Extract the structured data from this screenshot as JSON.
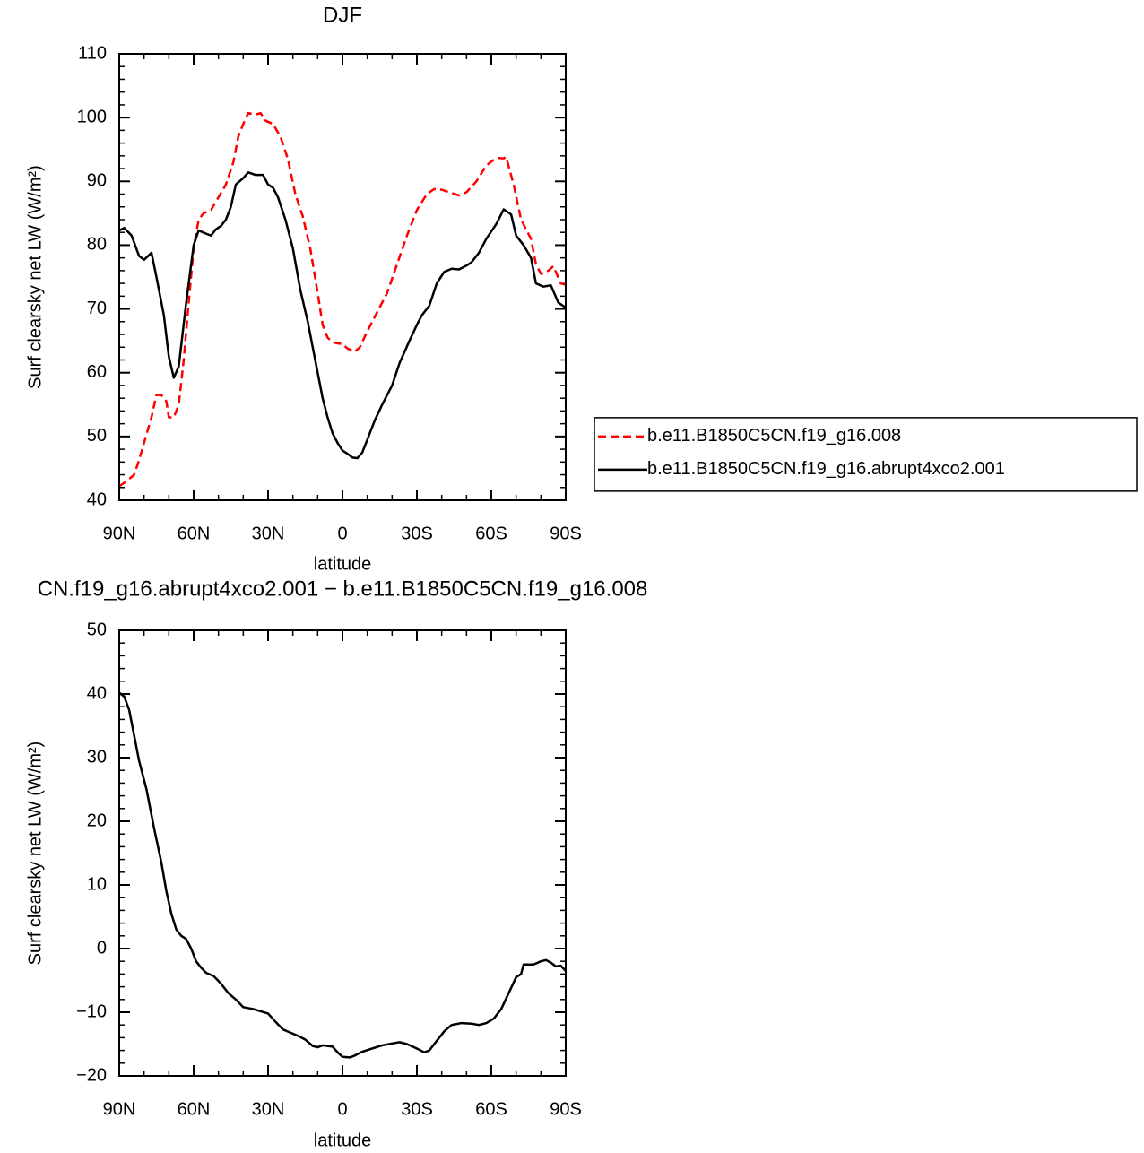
{
  "chart_data": [
    {
      "type": "line",
      "title": "DJF",
      "x_label": "latitude",
      "y_label": "Surf clearsky net LW (W/m²)",
      "xlim": [
        90,
        -90
      ],
      "xticks": [
        {
          "value": 90,
          "label": "90N"
        },
        {
          "value": 60,
          "label": "60N"
        },
        {
          "value": 30,
          "label": "30N"
        },
        0,
        {
          "value": -30,
          "label": "30S"
        },
        {
          "value": -60,
          "label": "60S"
        },
        {
          "value": -90,
          "label": "90S"
        }
      ],
      "ylim": [
        40,
        110
      ],
      "yticks": [
        40,
        50,
        60,
        70,
        80,
        90,
        100,
        110
      ],
      "legend": "outside-right",
      "series": [
        {
          "name": "b.e11.B1850C5CN.f19_g16.008",
          "color": "#ff0000",
          "line_style": "dashed",
          "x": [
            90,
            87,
            84,
            82,
            80,
            77,
            75,
            73,
            71,
            70,
            68,
            66,
            64,
            62,
            60,
            58,
            56,
            53,
            50,
            47,
            44,
            42,
            40,
            38,
            35,
            33,
            31,
            28,
            25,
            22,
            19,
            16,
            13,
            10,
            8,
            6,
            4,
            2,
            0,
            -2,
            -5,
            -7,
            -10,
            -14,
            -18,
            -22,
            -26,
            -30,
            -34,
            -37,
            -40,
            -43,
            -47,
            -50,
            -54,
            -58,
            -62,
            -65,
            -66,
            -69,
            -72,
            -76,
            -78,
            -80,
            -83,
            -85,
            -88,
            -90
          ],
          "values": [
            42.2,
            43,
            44,
            46.3,
            49,
            53,
            56.5,
            56.5,
            55.5,
            53,
            53,
            55,
            62,
            71,
            79.5,
            84,
            85,
            85.5,
            87.5,
            89.5,
            93,
            97,
            99,
            100.7,
            100.5,
            100.7,
            99.5,
            99,
            97,
            93.5,
            88,
            84.5,
            79.5,
            72.5,
            67.5,
            65.5,
            64.8,
            64.6,
            64.5,
            63.8,
            63.3,
            64,
            66.5,
            69.5,
            72.5,
            77,
            81.5,
            85.5,
            88,
            88.8,
            88.7,
            88.3,
            87.8,
            88.3,
            90,
            92.5,
            93.7,
            93.6,
            93.8,
            89.5,
            84,
            81,
            77,
            75.5,
            76,
            76.7,
            74,
            73.8
          ]
        },
        {
          "name": "b.e11.B1850C5CN.f19_g16.abrupt4xco2.001",
          "color": "#000000",
          "line_style": "solid",
          "x": [
            90,
            88,
            85,
            82,
            80,
            77,
            75,
            72,
            70,
            68,
            66,
            63,
            60,
            58,
            55,
            53,
            51,
            49,
            47,
            45,
            43,
            40,
            38,
            35,
            32,
            30,
            28,
            26,
            23,
            20,
            17,
            14,
            11,
            8,
            6,
            4,
            2,
            0,
            -2,
            -4,
            -6,
            -8,
            -10,
            -13,
            -16,
            -20,
            -23,
            -27,
            -30,
            -32,
            -35,
            -38,
            -41,
            -44,
            -47,
            -50,
            -52,
            -55,
            -58,
            -62,
            -65,
            -68,
            -70,
            -73,
            -76,
            -78,
            -81,
            -84,
            -87,
            -90
          ],
          "values": [
            82.3,
            82.7,
            81.5,
            78.3,
            77.7,
            78.8,
            75,
            69,
            62.5,
            59.2,
            61,
            71,
            80,
            82.3,
            81.8,
            81.5,
            82.5,
            83,
            84,
            86,
            89.5,
            90.5,
            91.4,
            91,
            91,
            89.5,
            89,
            87.5,
            84,
            79.5,
            73,
            68,
            62,
            56,
            53,
            50.5,
            49,
            47.8,
            47.3,
            46.7,
            46.6,
            47.5,
            49.5,
            52.5,
            55,
            58,
            61.5,
            65,
            67.5,
            69,
            70.5,
            74,
            75.8,
            76.3,
            76.2,
            76.8,
            77.3,
            78.8,
            81,
            83.3,
            85.6,
            84.8,
            81.5,
            80,
            78,
            74,
            73.5,
            73.7,
            71,
            70.2
          ]
        }
      ]
    },
    {
      "type": "line",
      "title": "CN.f19_g16.abrupt4xco2.001 − b.e11.B1850C5CN.f19_g16.008",
      "x_label": "latitude",
      "y_label": "Surf clearsky net LW (W/m²)",
      "xlim": [
        90,
        -90
      ],
      "xticks": [
        {
          "value": 90,
          "label": "90N"
        },
        {
          "value": 60,
          "label": "60N"
        },
        {
          "value": 30,
          "label": "30N"
        },
        0,
        {
          "value": -30,
          "label": "30S"
        },
        {
          "value": -60,
          "label": "60S"
        },
        {
          "value": -90,
          "label": "90S"
        }
      ],
      "ylim": [
        -20,
        50
      ],
      "yticks": [
        {
          "value": -20,
          "label": "−20"
        },
        {
          "value": -10,
          "label": "−10"
        },
        0,
        10,
        20,
        30,
        40,
        50
      ],
      "series": [
        {
          "color": "#000000",
          "line_style": "solid",
          "x": [
            90,
            88,
            86,
            84,
            82,
            79,
            76,
            73,
            71,
            69,
            67,
            65,
            63,
            61,
            59,
            57,
            55,
            52,
            49,
            46,
            43,
            40,
            36,
            30,
            27,
            24,
            21,
            18,
            15,
            12,
            10,
            8,
            4,
            2,
            0,
            -3,
            -5,
            -8,
            -12,
            -16,
            -20,
            -23,
            -26,
            -30,
            -33,
            -35,
            -38,
            -41,
            -44,
            -48,
            -52,
            -55,
            -58,
            -61,
            -64,
            -67,
            -70,
            -72,
            -73,
            -77,
            -80,
            -82,
            -84,
            -86,
            -88,
            -90
          ],
          "values": [
            40.2,
            39.6,
            37.5,
            33.5,
            29.5,
            25,
            19,
            13.5,
            9,
            5.5,
            3,
            2,
            1.5,
            0,
            -2,
            -3,
            -3.8,
            -4.3,
            -5.5,
            -7,
            -8,
            -9.2,
            -9.5,
            -10.2,
            -11.5,
            -12.7,
            -13.2,
            -13.7,
            -14.3,
            -15.3,
            -15.5,
            -15.2,
            -15.4,
            -16.3,
            -17,
            -17.1,
            -16.8,
            -16.2,
            -15.7,
            -15.2,
            -14.9,
            -14.7,
            -15,
            -15.7,
            -16.3,
            -16,
            -14.5,
            -13,
            -12,
            -11.7,
            -11.8,
            -12,
            -11.7,
            -11,
            -9.5,
            -7,
            -4.5,
            -4,
            -2.5,
            -2.5,
            -2,
            -1.8,
            -2.2,
            -2.8,
            -2.7,
            -3.5
          ]
        }
      ]
    }
  ]
}
